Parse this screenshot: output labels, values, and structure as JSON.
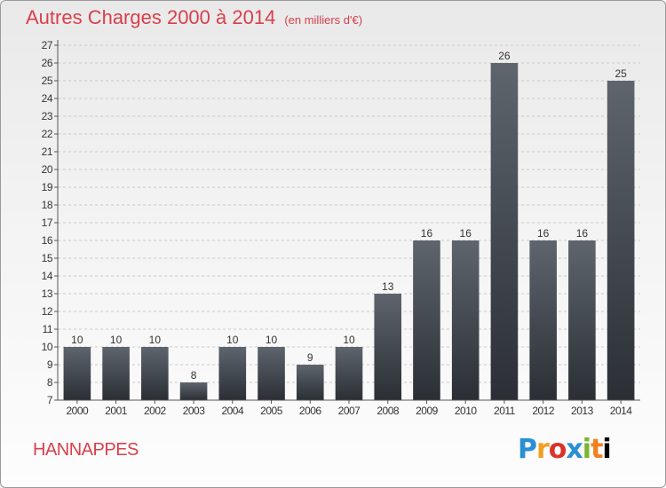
{
  "header": {
    "title": "Autres Charges 2000 à 2014",
    "subtitle": "(en milliers d'€)"
  },
  "footer": {
    "commune": "HANNAPPES",
    "logo_letters": [
      "P",
      "r",
      "o",
      "x",
      "i",
      "t",
      "i"
    ]
  },
  "colors": {
    "title": "#d8404c",
    "bar_top": "#5e656d",
    "bar_bottom": "#2b2f35"
  },
  "chart_data": {
    "type": "bar",
    "title": "Autres Charges 2000 à 2014",
    "categories": [
      "2000",
      "2001",
      "2002",
      "2003",
      "2004",
      "2005",
      "2006",
      "2007",
      "2008",
      "2009",
      "2010",
      "2011",
      "2012",
      "2013",
      "2014"
    ],
    "values": [
      10,
      10,
      10,
      8,
      10,
      10,
      9,
      10,
      13,
      16,
      16,
      26,
      16,
      16,
      25
    ],
    "ylim": [
      7,
      27
    ],
    "yticks": [
      7,
      8,
      9,
      10,
      11,
      12,
      13,
      14,
      15,
      16,
      17,
      18,
      19,
      20,
      21,
      22,
      23,
      24,
      25,
      26,
      27
    ],
    "grid": true,
    "data_labels": true
  }
}
